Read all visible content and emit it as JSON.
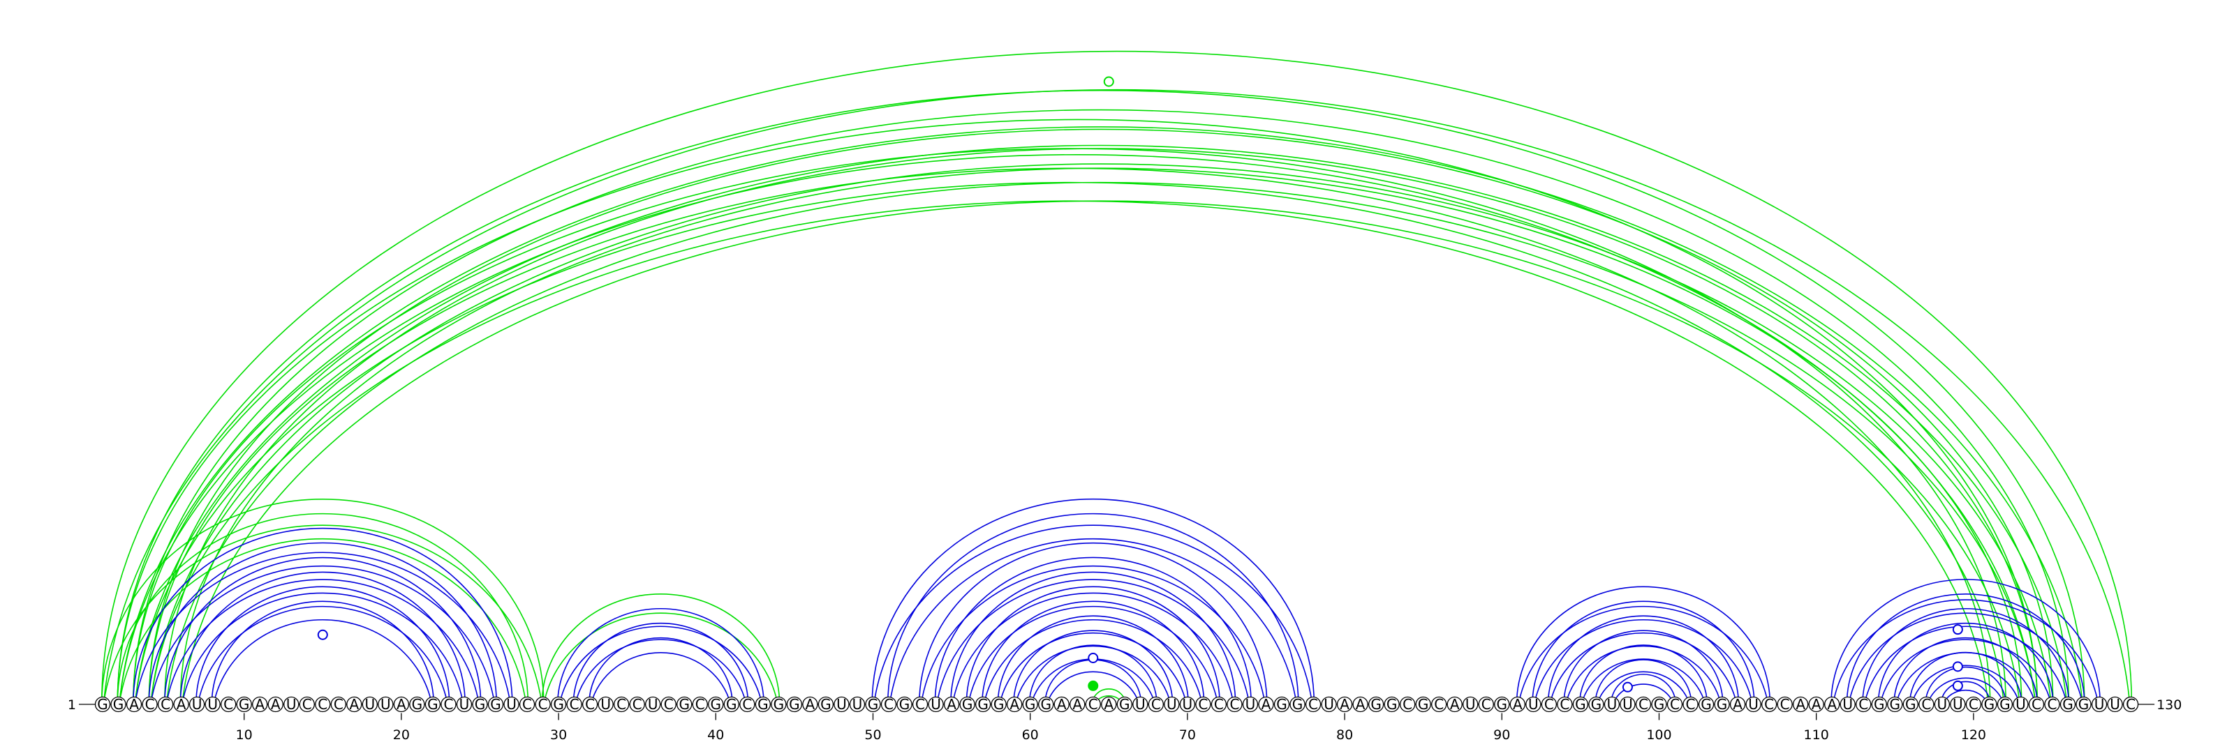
{
  "sequence": "GGACCAUUCGAAUCCCAUUAGGCUGGUCCGCCUCCUCGCGGCGGGAGUUGCGCUAGGGAGGAACAGUCUUCCCUAGGCUAAGGCGCAUCGAUCCGGUUCGCCGGAUCCAAAUCGGGCUUCGGUCCGGUUC",
  "start_label": "1",
  "end_label": "130",
  "tick_labels": [
    "10",
    "20",
    "30",
    "40",
    "50",
    "60",
    "70",
    "80",
    "90",
    "100",
    "110",
    "120"
  ],
  "tick_positions": [
    10,
    20,
    30,
    40,
    50,
    60,
    70,
    80,
    90,
    100,
    110,
    120
  ],
  "colors": {
    "blue": "#0000dd",
    "green": "#00dd00",
    "base_fill": "#ffffff",
    "base_stroke": "#000000"
  },
  "arc_groups": [
    {
      "name": "long-range-outer",
      "color": "green",
      "pairs": [
        [
          1,
          130
        ],
        [
          2,
          127
        ],
        [
          3,
          126
        ],
        [
          4,
          125
        ],
        [
          5,
          124
        ],
        [
          6,
          123
        ]
      ]
    },
    {
      "name": "long-range-inner",
      "color": "green",
      "pairs": [
        [
          2,
          124
        ],
        [
          3,
          122
        ],
        [
          4,
          121
        ]
      ]
    },
    {
      "name": "helix-1-outer",
      "color": "green",
      "pairs": [
        [
          1,
          29
        ],
        [
          2,
          28
        ]
      ]
    },
    {
      "name": "helix-1",
      "color": "blue",
      "pairs": [
        [
          3,
          27
        ],
        [
          4,
          26
        ],
        [
          5,
          25
        ],
        [
          6,
          24
        ],
        [
          7,
          23
        ],
        [
          8,
          22
        ]
      ]
    },
    {
      "name": "helix-2-outer",
      "color": "green",
      "pairs": [
        [
          29,
          44
        ]
      ]
    },
    {
      "name": "helix-2",
      "color": "blue",
      "pairs": [
        [
          30,
          43
        ],
        [
          31,
          42
        ],
        [
          32,
          41
        ]
      ]
    },
    {
      "name": "helix-3",
      "color": "blue",
      "pairs": [
        [
          50,
          78
        ],
        [
          51,
          77
        ],
        [
          53,
          75
        ],
        [
          54,
          74
        ],
        [
          55,
          73
        ],
        [
          56,
          72
        ],
        [
          57,
          71
        ],
        [
          58,
          70
        ],
        [
          59,
          69
        ],
        [
          60,
          68
        ],
        [
          61,
          67
        ]
      ]
    },
    {
      "name": "helix-3-loop",
      "color": "green",
      "pairs": [
        [
          64,
          66
        ]
      ]
    },
    {
      "name": "helix-4",
      "color": "blue",
      "pairs": [
        [
          91,
          107
        ],
        [
          92,
          106
        ],
        [
          93,
          105
        ],
        [
          94,
          104
        ],
        [
          95,
          103
        ],
        [
          96,
          102
        ],
        [
          97,
          101
        ]
      ]
    },
    {
      "name": "helix-5",
      "color": "blue",
      "pairs": [
        [
          111,
          128
        ],
        [
          112,
          127
        ],
        [
          113,
          126
        ],
        [
          114,
          125
        ],
        [
          115,
          124
        ],
        [
          116,
          123
        ],
        [
          117,
          122
        ],
        [
          118,
          121
        ]
      ]
    }
  ],
  "loop_markers": [
    {
      "pos": 65,
      "height": 0.94,
      "color": "green",
      "filled": false
    },
    {
      "pos": 15,
      "height": 0.105,
      "color": "blue",
      "filled": false
    },
    {
      "pos": 64,
      "height": 0.07,
      "color": "blue",
      "filled": false
    },
    {
      "pos": 64,
      "height": 0.028,
      "color": "green",
      "filled": true
    },
    {
      "pos": 98,
      "height": 0.026,
      "color": "blue",
      "filled": false
    },
    {
      "pos": 119,
      "height": 0.113,
      "color": "blue",
      "filled": false
    },
    {
      "pos": 119,
      "height": 0.057,
      "color": "blue",
      "filled": false
    },
    {
      "pos": 119,
      "height": 0.028,
      "color": "blue",
      "filled": false
    }
  ]
}
